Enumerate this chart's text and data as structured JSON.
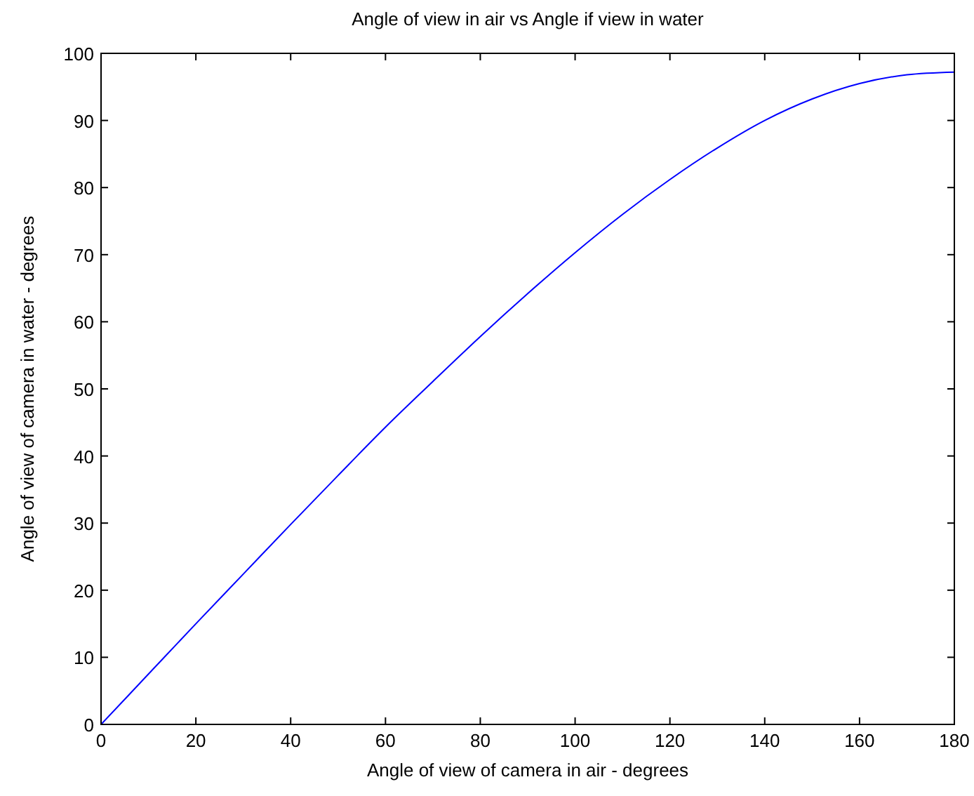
{
  "chart_data": {
    "type": "line",
    "title": "Angle of view in air vs Angle if view in water",
    "xlabel": "Angle of view of camera in air - degrees",
    "ylabel": "Angle of view of camera in water - degrees",
    "x": [
      0,
      10,
      20,
      30,
      40,
      50,
      60,
      70,
      80,
      90,
      100,
      110,
      120,
      130,
      140,
      150,
      160,
      170,
      180
    ],
    "series": [
      {
        "color": "#0000ff",
        "values": [
          0,
          7.5,
          15,
          22.4,
          29.8,
          37.1,
          44.3,
          51.1,
          57.8,
          64.2,
          70.3,
          76,
          81.2,
          85.9,
          90,
          93.2,
          95.5,
          96.8,
          97.2
        ]
      }
    ],
    "xlim": [
      0,
      180
    ],
    "xticks": [
      0,
      20,
      40,
      60,
      80,
      100,
      120,
      140,
      160,
      180
    ],
    "ylim": [
      0,
      100
    ],
    "yticks": [
      0,
      10,
      20,
      30,
      40,
      50,
      60,
      70,
      80,
      90,
      100
    ],
    "grid": false,
    "marker": "none",
    "line_style": "solid"
  }
}
